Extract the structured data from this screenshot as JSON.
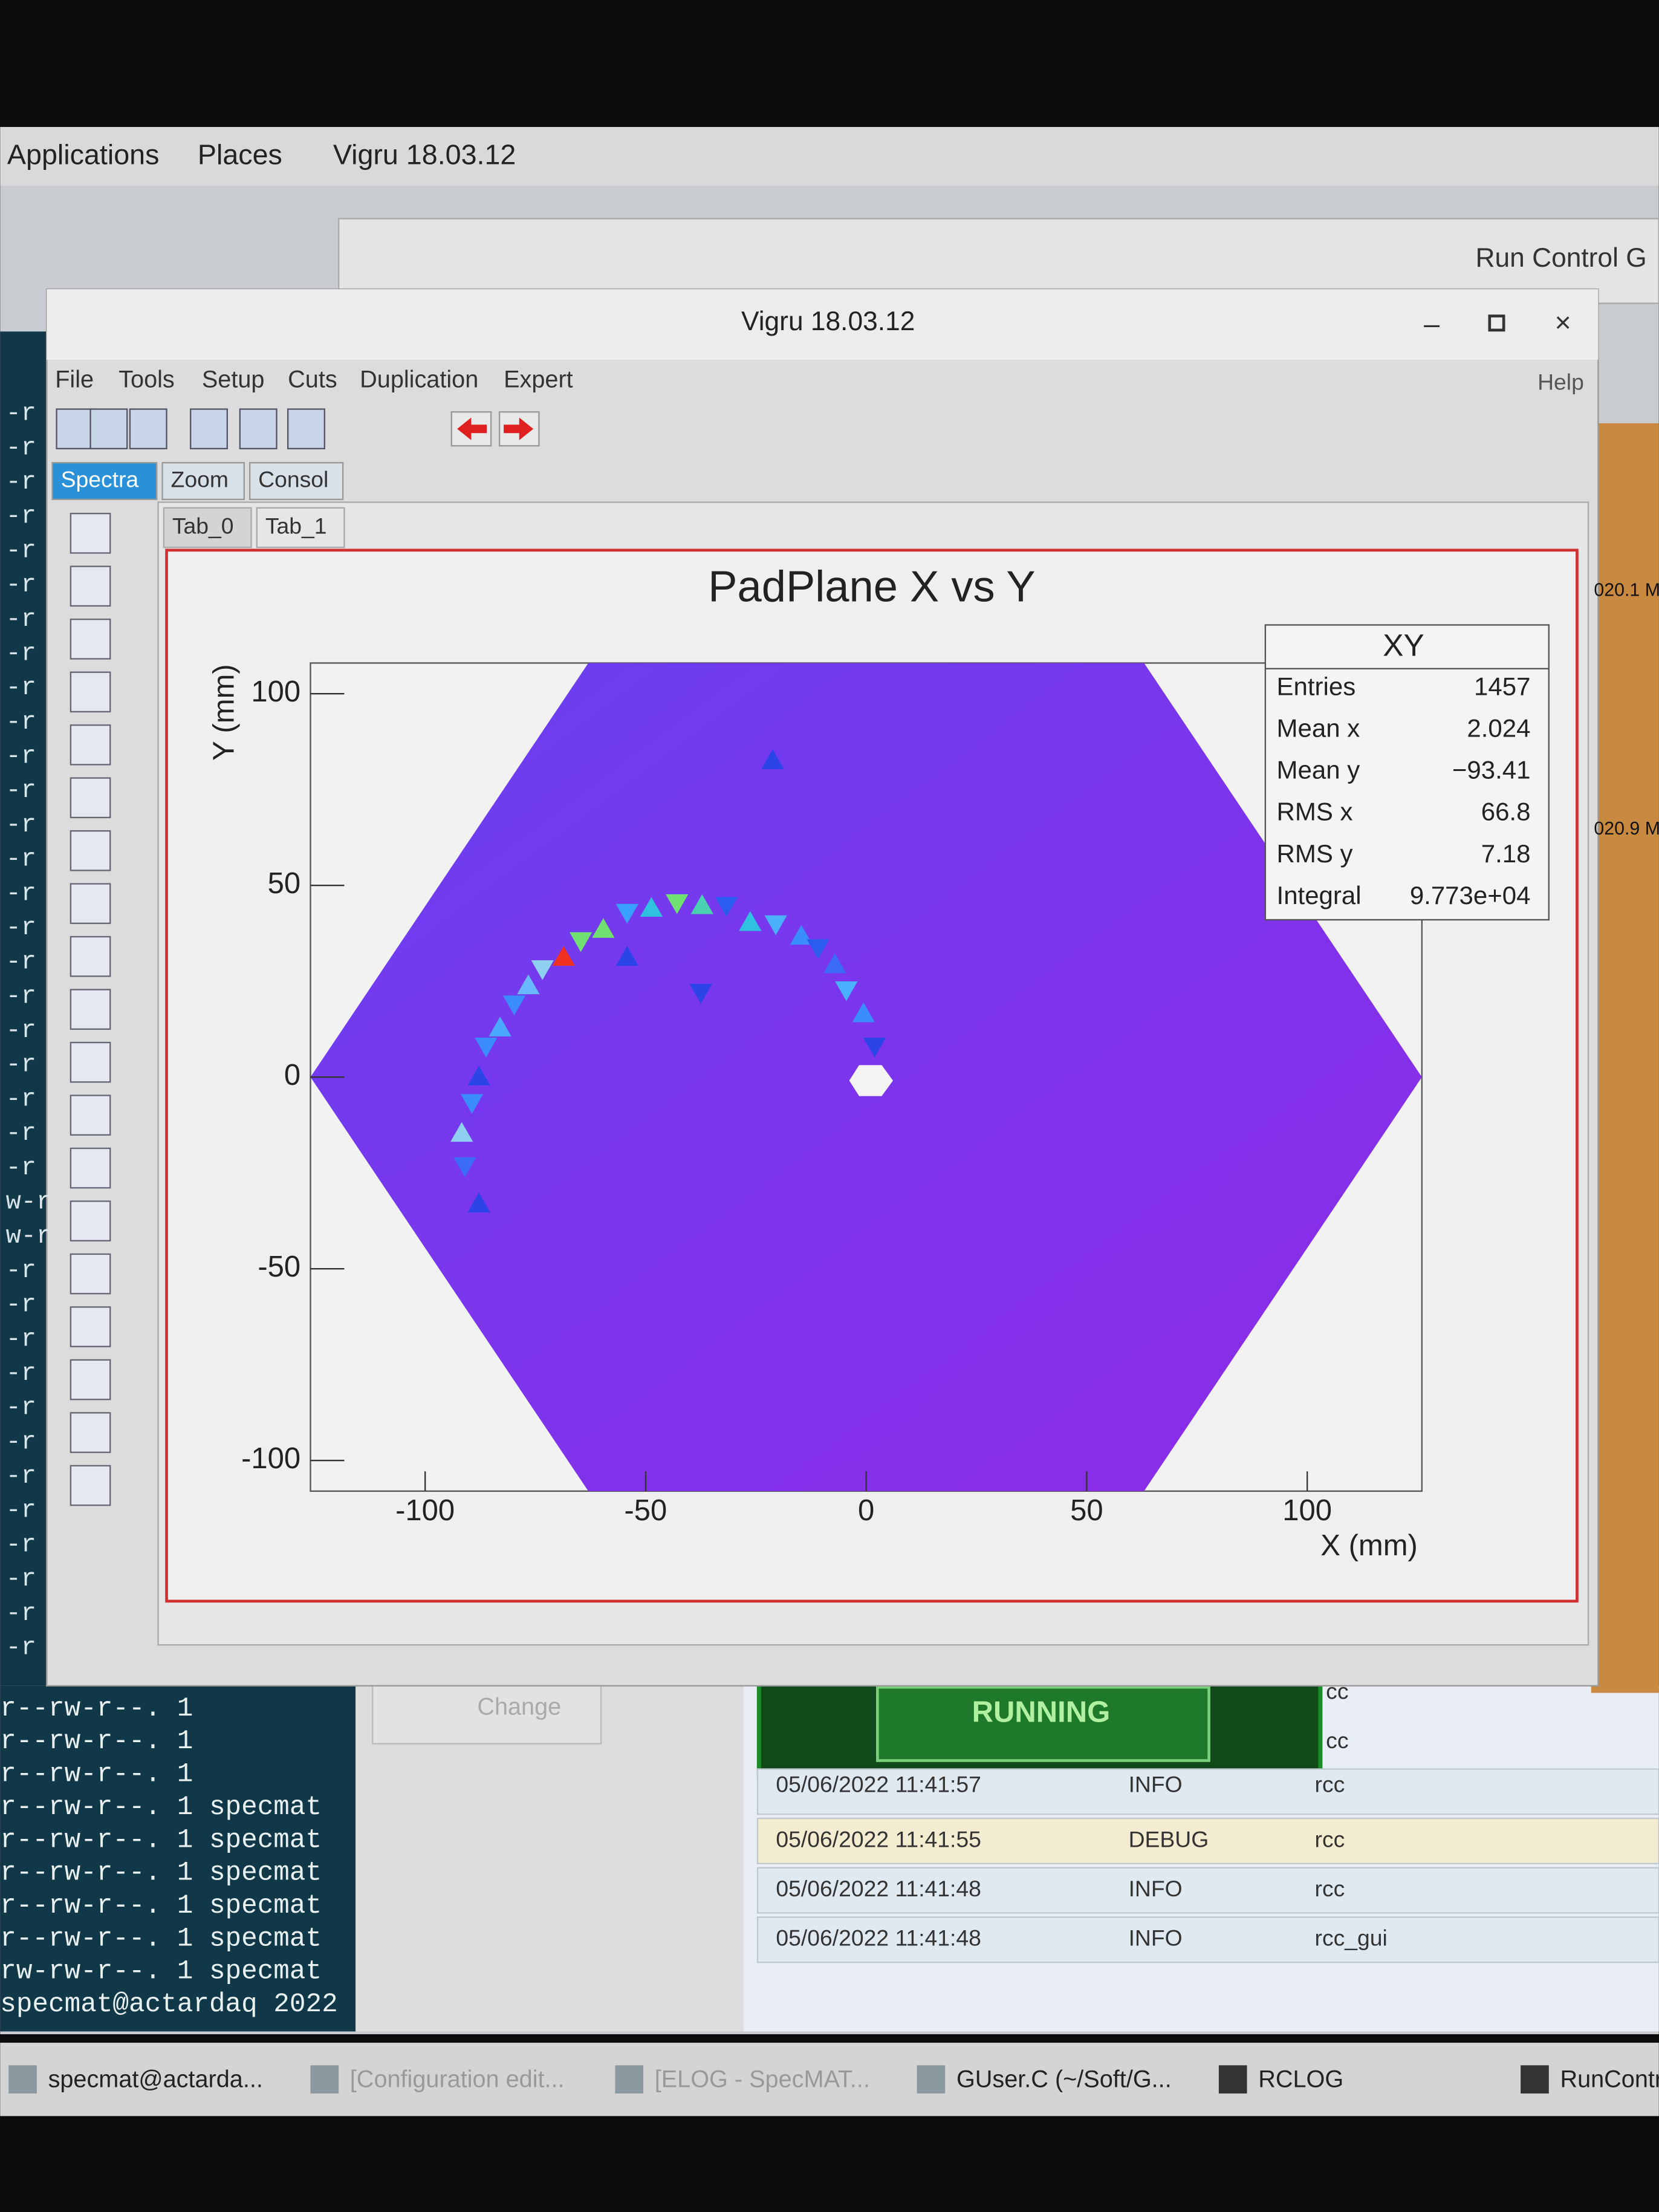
{
  "desktop": {
    "menu": [
      "Applications",
      "Places",
      "Vigru 18.03.12"
    ]
  },
  "background_window": {
    "title": "Run Control G"
  },
  "window": {
    "title": "Vigru 18.03.12",
    "menu": [
      "File",
      "Tools",
      "Setup",
      "Cuts",
      "Duplication",
      "Expert"
    ],
    "help": "Help",
    "tabs": [
      "Spectra",
      "Zoom",
      "Consol"
    ],
    "subtabs": [
      "Tab_0",
      "Tab_1"
    ]
  },
  "chart": {
    "type": "scatter",
    "title": "PadPlane X vs Y",
    "x_label": "X (mm)",
    "y_label": "Y (mm)",
    "xlim": [
      -126,
      126
    ],
    "ylim": [
      -108,
      108
    ],
    "xticks": [
      -100,
      -50,
      0,
      50,
      100
    ],
    "yticks": [
      -100,
      -50,
      0,
      50,
      100
    ],
    "x": [
      -87.8,
      -91.0,
      -91.7,
      -89.4,
      -87.8,
      -86.2,
      -83.0,
      -79.8,
      -76.6,
      -73.4,
      -68.6,
      -64.7,
      -59.6,
      -54.2,
      -48.7,
      -42.9,
      -37.2,
      -31.7,
      -26.3,
      -20.5,
      -14.7,
      -10.9,
      -7.1,
      -4.5,
      -0.6,
      1.9,
      -21.2,
      -37.5,
      -54.2
    ],
    "y": [
      -32.7,
      -23.5,
      -14.3,
      -7.0,
      0.4,
      7.7,
      13.2,
      18.7,
      24.2,
      27.9,
      31.6,
      35.2,
      38.9,
      42.6,
      44.4,
      45.1,
      45.1,
      44.4,
      40.7,
      39.6,
      37.1,
      33.4,
      29.7,
      22.4,
      16.9,
      7.7,
      82.9,
      21.7,
      31.6
    ],
    "colors": [
      "#2a44e8",
      "#3a6cf5",
      "#8fd0f0",
      "#3a8cff",
      "#2a44e8",
      "#3a8cff",
      "#4aa8ff",
      "#3a8cff",
      "#6ab8ff",
      "#8fd0f0",
      "#f03020",
      "#70e070",
      "#70e070",
      "#3aa0ff",
      "#30c0e0",
      "#70e070",
      "#4ad0b0",
      "#2a5cf0",
      "#30c0e0",
      "#4ab0ff",
      "#3a8cff",
      "#2a5cf0",
      "#3a6cf5",
      "#4ab0ff",
      "#3a8cff",
      "#2a44e8",
      "#2a44e8",
      "#2a44e8",
      "#2a44e8"
    ]
  },
  "stats": {
    "title": "XY",
    "rows": [
      [
        "Entries",
        "1457"
      ],
      [
        "Mean x",
        "2.024"
      ],
      [
        "Mean y",
        "−93.41"
      ],
      [
        "RMS x",
        "66.8"
      ],
      [
        "RMS y",
        "7.18"
      ],
      [
        "Integral",
        "9.773e+04"
      ]
    ]
  },
  "terminal": {
    "fragments": [
      "-r",
      "-r",
      "-r",
      "-r",
      "-r",
      "-r",
      "-r",
      "-r",
      "-r",
      "-r",
      "-r",
      "-r",
      "-r",
      "-r",
      "-r",
      "-r",
      "-r",
      "-r",
      "-r",
      "-r",
      "-r",
      "-r",
      "-r",
      "w-r",
      "w-r",
      "-r",
      "-r",
      "-r",
      "-r",
      "-r",
      "-r",
      "-r",
      "-r",
      "-r",
      "-r",
      "-r",
      "-r"
    ],
    "lines": [
      "r--rw-r--. 1",
      "r--rw-r--. 1",
      "r--rw-r--. 1",
      "r--rw-r--. 1 specmat",
      "r--rw-r--. 1 specmat",
      "r--rw-r--. 1 specmat",
      "r--rw-r--. 1 specmat",
      "r--rw-r--. 1 specmat",
      "rw-rw-r--. 1 specmat",
      "specmat@actardaq 2022"
    ]
  },
  "run_control": {
    "change": "Change",
    "state": "RUNNING",
    "side_labels": [
      "020.1 M",
      "020.9 M"
    ],
    "cc": [
      "cc",
      "cc"
    ],
    "log": [
      [
        "05/06/2022 11:41:57",
        "INFO",
        "rcc"
      ],
      [
        "05/06/2022 11:41:55",
        "DEBUG",
        "rcc"
      ],
      [
        "05/06/2022 11:41:48",
        "INFO",
        "rcc"
      ],
      [
        "05/06/2022 11:41:48",
        "INFO",
        "rcc_gui"
      ]
    ]
  },
  "taskbar": [
    "specmat@actarda...",
    "[Configuration edit...",
    "[ELOG - SpecMAT...",
    "GUser.C (~/Soft/G...",
    "RCLOG",
    "RunContr"
  ]
}
